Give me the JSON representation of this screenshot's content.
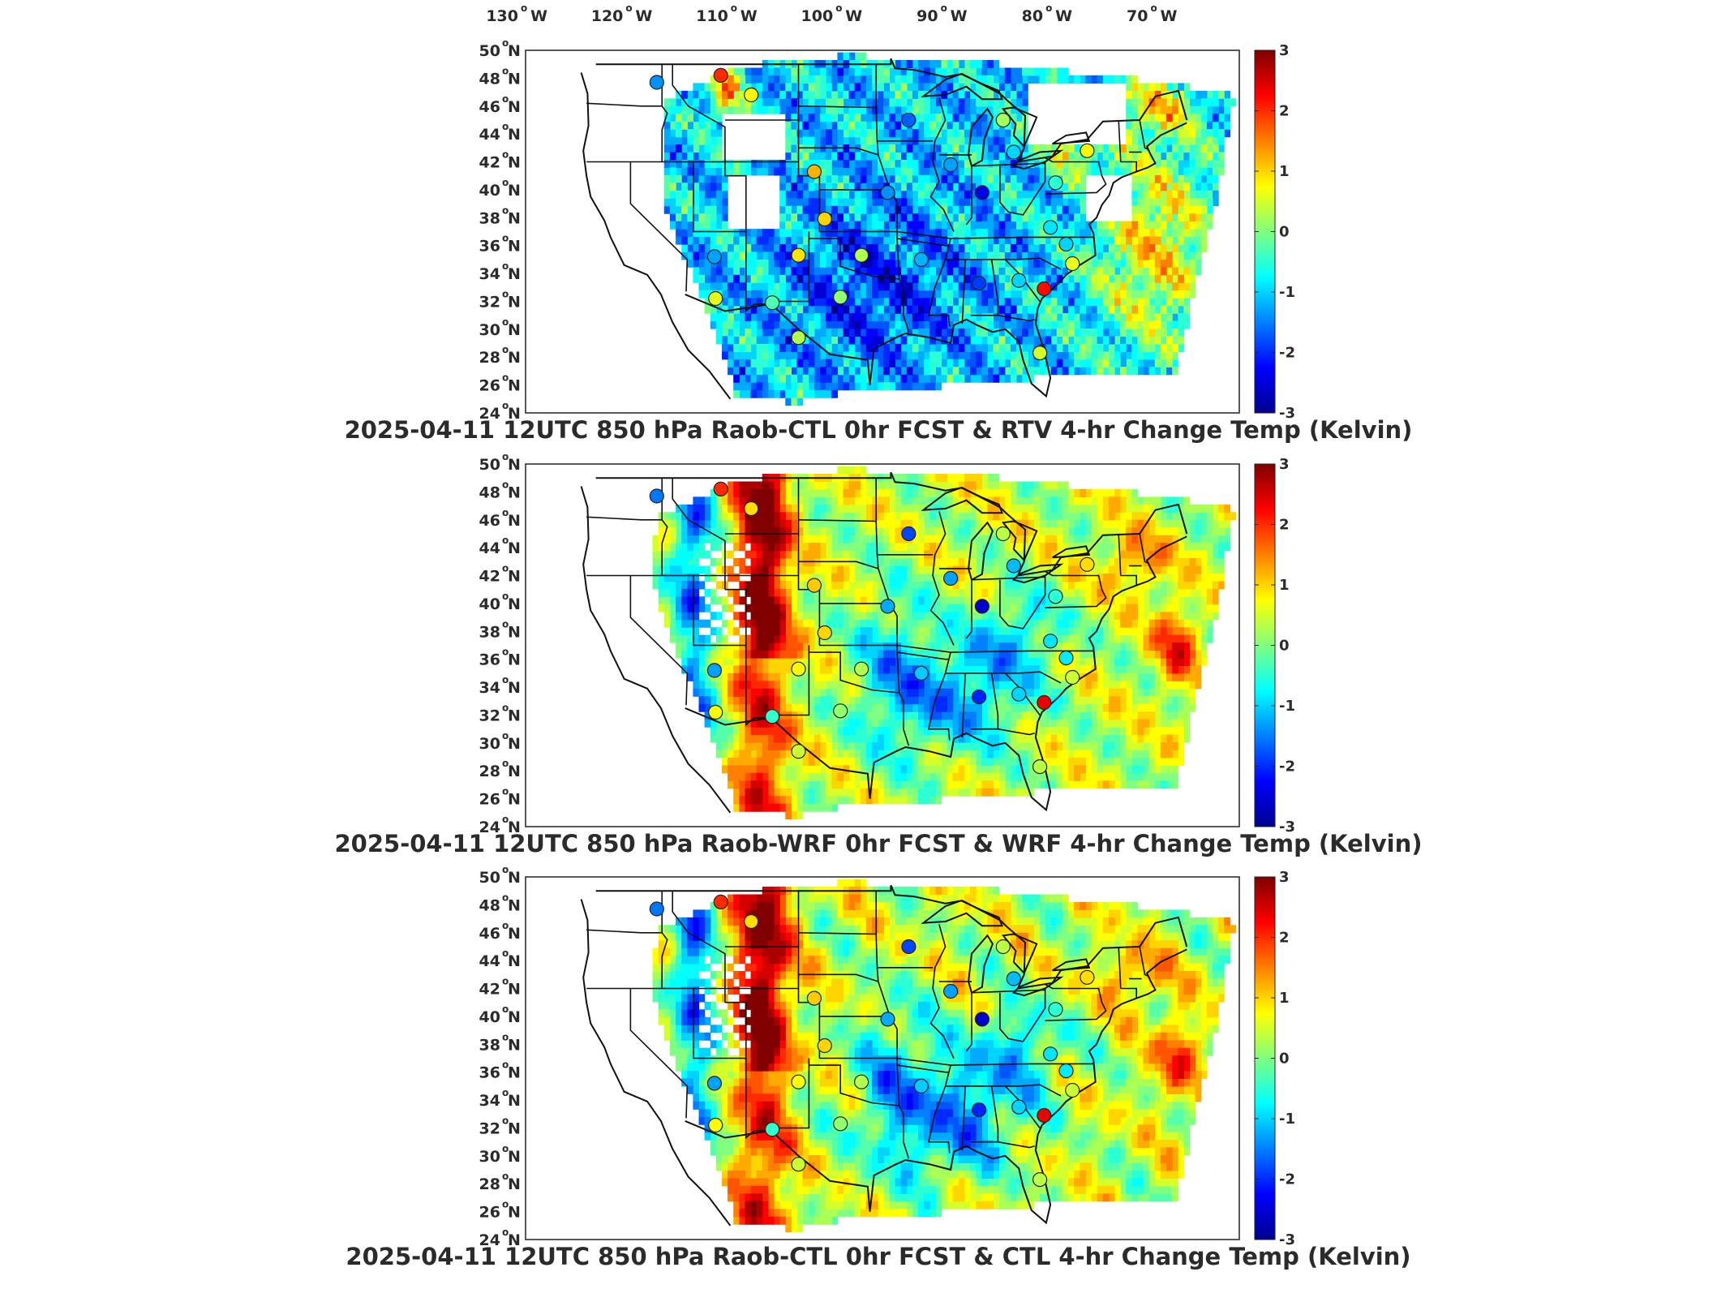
{
  "figure": {
    "lon_ticks": [
      {
        "label": "130",
        "suffix": "W"
      },
      {
        "label": "120",
        "suffix": "W"
      },
      {
        "label": "110",
        "suffix": "W"
      },
      {
        "label": "100",
        "suffix": "W"
      },
      {
        "label": "90",
        "suffix": "W"
      },
      {
        "label": "80",
        "suffix": "W"
      },
      {
        "label": "70",
        "suffix": "W"
      }
    ],
    "lat_ticks": [
      {
        "label": "50",
        "suffix": "N"
      },
      {
        "label": "48",
        "suffix": "N"
      },
      {
        "label": "46",
        "suffix": "N"
      },
      {
        "label": "44",
        "suffix": "N"
      },
      {
        "label": "42",
        "suffix": "N"
      },
      {
        "label": "40",
        "suffix": "N"
      },
      {
        "label": "38",
        "suffix": "N"
      },
      {
        "label": "36",
        "suffix": "N"
      },
      {
        "label": "34",
        "suffix": "N"
      },
      {
        "label": "32",
        "suffix": "N"
      },
      {
        "label": "30",
        "suffix": "N"
      },
      {
        "label": "28",
        "suffix": "N"
      },
      {
        "label": "26",
        "suffix": "N"
      },
      {
        "label": "24",
        "suffix": "N"
      }
    ],
    "colorbar": {
      "ticks": [
        "3",
        "2",
        "1",
        "0",
        "-1",
        "-2",
        "-3"
      ],
      "range": [
        -3,
        3
      ],
      "colormap": "jet"
    },
    "panels": [
      {
        "title": "2025-04-11 12UTC 850 hPa Raob-CTL 0hr FCST & RTV 4-hr Change Temp (Kelvin)",
        "field": "RTV"
      },
      {
        "title": "2025-04-11 12UTC 850 hPa Raob-WRF 0hr FCST & WRF 4-hr Change Temp (Kelvin)",
        "field": "WRF"
      },
      {
        "title": "2025-04-11 12UTC 850 hPa Raob-CTL 0hr FCST & CTL 4-hr Change Temp (Kelvin)",
        "field": "CTL"
      }
    ],
    "raob_stations_panel1": [
      {
        "lon": -117.5,
        "lat": 47.7,
        "v": -1.4
      },
      {
        "lon": -111.4,
        "lat": 48.2,
        "v": 2.0
      },
      {
        "lon": -108.5,
        "lat": 46.8,
        "v": 0.8
      },
      {
        "lon": -93.5,
        "lat": 45.0,
        "v": -1.7
      },
      {
        "lon": -89.5,
        "lat": 41.8,
        "v": -1.3
      },
      {
        "lon": -84.5,
        "lat": 45.0,
        "v": 0.2
      },
      {
        "lon": -83.5,
        "lat": 42.7,
        "v": -1.0
      },
      {
        "lon": -79.5,
        "lat": 40.5,
        "v": -0.5
      },
      {
        "lon": -76.5,
        "lat": 42.8,
        "v": 0.8
      },
      {
        "lon": -102.5,
        "lat": 41.3,
        "v": 1.2
      },
      {
        "lon": -101.5,
        "lat": 37.9,
        "v": 1.0
      },
      {
        "lon": -95.5,
        "lat": 39.8,
        "v": -1.4
      },
      {
        "lon": -86.5,
        "lat": 39.8,
        "v": -2.4
      },
      {
        "lon": -80.0,
        "lat": 37.3,
        "v": -0.9
      },
      {
        "lon": -78.5,
        "lat": 36.1,
        "v": -1.0
      },
      {
        "lon": -104.0,
        "lat": 35.3,
        "v": 0.9
      },
      {
        "lon": -98.0,
        "lat": 35.3,
        "v": 0.3
      },
      {
        "lon": -92.3,
        "lat": 35.0,
        "v": -1.2
      },
      {
        "lon": -86.8,
        "lat": 33.3,
        "v": -1.9
      },
      {
        "lon": -83.0,
        "lat": 33.5,
        "v": -1.0
      },
      {
        "lon": -80.6,
        "lat": 32.9,
        "v": 2.2
      },
      {
        "lon": -77.9,
        "lat": 34.7,
        "v": 0.6
      },
      {
        "lon": -112.0,
        "lat": 35.2,
        "v": -1.3
      },
      {
        "lon": -111.9,
        "lat": 32.2,
        "v": 0.6
      },
      {
        "lon": -106.5,
        "lat": 31.9,
        "v": -0.3
      },
      {
        "lon": -100.0,
        "lat": 32.3,
        "v": 0.1
      },
      {
        "lon": -104.0,
        "lat": 29.4,
        "v": 0.3
      },
      {
        "lon": -81.0,
        "lat": 28.3,
        "v": 0.5
      }
    ]
  }
}
